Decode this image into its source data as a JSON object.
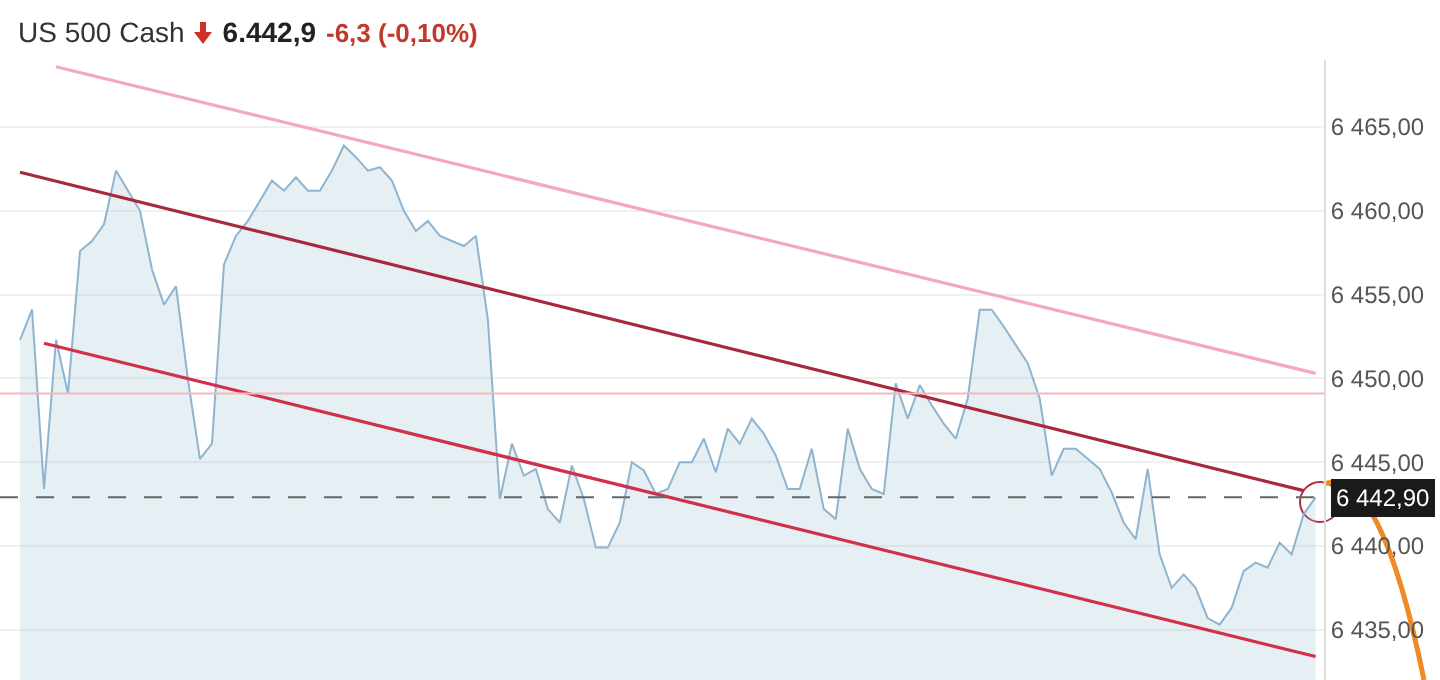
{
  "chart_data": {
    "type": "area",
    "title": "US 500 Cash",
    "subtitle": "6.442,9",
    "annotations": [
      "-6,3 (-0,10%)"
    ],
    "categories": [
      null,
      null,
      null,
      null,
      null,
      null,
      null,
      null,
      null,
      null,
      null,
      null,
      null,
      null,
      null,
      null,
      null,
      null,
      null,
      null,
      null,
      null,
      null,
      null,
      null,
      null,
      null,
      null,
      null,
      null,
      null,
      null,
      null,
      null,
      null,
      null,
      null,
      null,
      null,
      null,
      null,
      null,
      null,
      null,
      null,
      null,
      null,
      null,
      null,
      null,
      null,
      null,
      null,
      null,
      null,
      null,
      null,
      null,
      null,
      null,
      null,
      null,
      null,
      null,
      null,
      null,
      null,
      null,
      null,
      null,
      null,
      null,
      null,
      null,
      null,
      null,
      null,
      null,
      null,
      null,
      null,
      null,
      null,
      null,
      null,
      null,
      null,
      null,
      null,
      null,
      null,
      null,
      null,
      null,
      null,
      null,
      null,
      null,
      null,
      null,
      null,
      null,
      null,
      null,
      null,
      null,
      null,
      null,
      null
    ],
    "series": [
      {
        "color": "#8fb4cf",
        "values": [
          6452.3,
          6454.1,
          6443.4,
          6452.3,
          6449.1,
          6457.6,
          6458.2,
          6459.2,
          6462.4,
          6461.2,
          6460.0,
          6456.5,
          6454.4,
          6455.5,
          6449.9,
          6445.2,
          6446.1,
          6456.8,
          6458.5,
          6459.4,
          6460.6,
          6461.8,
          6461.2,
          6462.0,
          6461.2,
          6461.2,
          6462.4,
          6463.9,
          6463.2,
          6462.4,
          6462.6,
          6461.8,
          6460.0,
          6458.8,
          6459.4,
          6458.5,
          6458.2,
          6457.9,
          6458.5,
          6453.5,
          6442.8,
          6446.1,
          6444.2,
          6444.6,
          6442.2,
          6441.4,
          6444.8,
          6442.8,
          6439.9,
          6439.9,
          6441.4,
          6445.0,
          6444.5,
          6443.1,
          6443.4,
          6445.0,
          6445.0,
          6446.4,
          6444.4,
          6447.0,
          6446.1,
          6447.6,
          6446.7,
          6445.4,
          6443.4,
          6443.4,
          6445.8,
          6442.2,
          6441.6,
          6447.0,
          6444.6,
          6443.4,
          6443.1,
          6449.7,
          6447.6,
          6449.6,
          6448.4,
          6447.3,
          6446.4,
          6448.8,
          6454.1,
          6454.1,
          6453.1,
          6452.0,
          6450.9,
          6448.8,
          6444.2,
          6445.8,
          6445.8,
          6445.2,
          6444.6,
          6443.2,
          6441.4,
          6440.4,
          6444.6,
          6439.5,
          6437.5,
          6438.3,
          6437.5,
          6435.7,
          6435.3,
          6436.3,
          6438.5,
          6439.0,
          6438.7,
          6440.2,
          6439.5,
          6441.9,
          6442.9
        ]
      },
      {
        "type": "line",
        "color": "#f4a6c6",
        "values": [
          null,
          null,
          null,
          6468.6,
          null,
          null,
          null,
          null,
          null,
          null,
          null,
          null,
          null,
          null,
          null,
          null,
          null,
          null,
          null,
          null,
          null,
          null,
          null,
          null,
          null,
          null,
          null,
          null,
          null,
          null,
          null,
          null,
          null,
          null,
          null,
          null,
          null,
          null,
          null,
          null,
          null,
          null,
          null,
          null,
          null,
          null,
          null,
          null,
          null,
          null,
          null,
          null,
          null,
          null,
          null,
          null,
          null,
          null,
          null,
          null,
          null,
          null,
          null,
          null,
          null,
          null,
          null,
          null,
          null,
          null,
          null,
          null,
          null,
          null,
          null,
          null,
          null,
          null,
          null,
          null,
          null,
          null,
          null,
          null,
          null,
          null,
          null,
          null,
          null,
          null,
          null,
          null,
          null,
          null,
          null,
          null,
          null,
          null,
          null,
          null,
          null,
          null,
          null,
          null,
          null,
          null,
          null,
          null,
          6450.3
        ]
      },
      {
        "type": "line",
        "color": "#a8283c",
        "values": [
          6462.3,
          null,
          null,
          null,
          null,
          null,
          null,
          null,
          null,
          null,
          null,
          null,
          null,
          null,
          null,
          null,
          null,
          null,
          null,
          null,
          null,
          null,
          null,
          null,
          null,
          null,
          null,
          null,
          null,
          null,
          null,
          null,
          null,
          null,
          null,
          null,
          null,
          null,
          null,
          null,
          null,
          null,
          null,
          null,
          null,
          null,
          null,
          null,
          null,
          null,
          null,
          null,
          null,
          null,
          null,
          null,
          null,
          null,
          null,
          null,
          null,
          null,
          null,
          null,
          null,
          null,
          null,
          null,
          null,
          null,
          null,
          null,
          null,
          null,
          null,
          null,
          null,
          null,
          null,
          null,
          null,
          null,
          null,
          null,
          null,
          null,
          null,
          null,
          null,
          null,
          null,
          null,
          null,
          null,
          null,
          null,
          null,
          null,
          null,
          null,
          null,
          null,
          null,
          null,
          null,
          null,
          null,
          6443.3,
          null
        ]
      },
      {
        "type": "line",
        "color": "#d0304a",
        "values": [
          null,
          null,
          6452.1,
          null,
          null,
          null,
          null,
          null,
          null,
          null,
          null,
          null,
          null,
          null,
          null,
          null,
          null,
          null,
          null,
          null,
          null,
          null,
          null,
          null,
          null,
          null,
          null,
          null,
          null,
          null,
          null,
          null,
          null,
          null,
          null,
          null,
          null,
          null,
          null,
          null,
          null,
          null,
          null,
          null,
          null,
          null,
          null,
          null,
          null,
          null,
          null,
          null,
          null,
          null,
          null,
          null,
          null,
          null,
          null,
          null,
          null,
          null,
          null,
          null,
          null,
          null,
          null,
          null,
          null,
          null,
          null,
          null,
          null,
          null,
          null,
          null,
          null,
          null,
          null,
          null,
          null,
          null,
          null,
          null,
          null,
          null,
          null,
          null,
          null,
          null,
          null,
          null,
          null,
          null,
          null,
          null,
          null,
          null,
          null,
          null,
          null,
          null,
          null,
          null,
          null,
          null,
          null,
          null,
          6433.4
        ]
      }
    ],
    "ylim": [
      6432,
      6469
    ],
    "yticks": [
      {
        "value": 6435,
        "label": "6 435,00"
      },
      {
        "value": 6440,
        "label": "6 440,00"
      },
      {
        "value": 6445,
        "label": "6 445,00"
      },
      {
        "value": 6450,
        "label": "6 450,00"
      },
      {
        "value": 6455,
        "label": "6 455,00"
      },
      {
        "value": 6460,
        "label": "6 460,00"
      },
      {
        "value": 6465,
        "label": "6 465,00"
      }
    ],
    "ref_lines": [
      {
        "axis": "y",
        "value": 6449.1,
        "color": "#f6b8b8",
        "line_style": "solid"
      },
      {
        "axis": "y",
        "value": 6442.9,
        "label": "6 442,90",
        "color": "#666666",
        "line_style": "dashed"
      }
    ],
    "grid": "y",
    "legend": false,
    "tick_labels": "y"
  }
}
